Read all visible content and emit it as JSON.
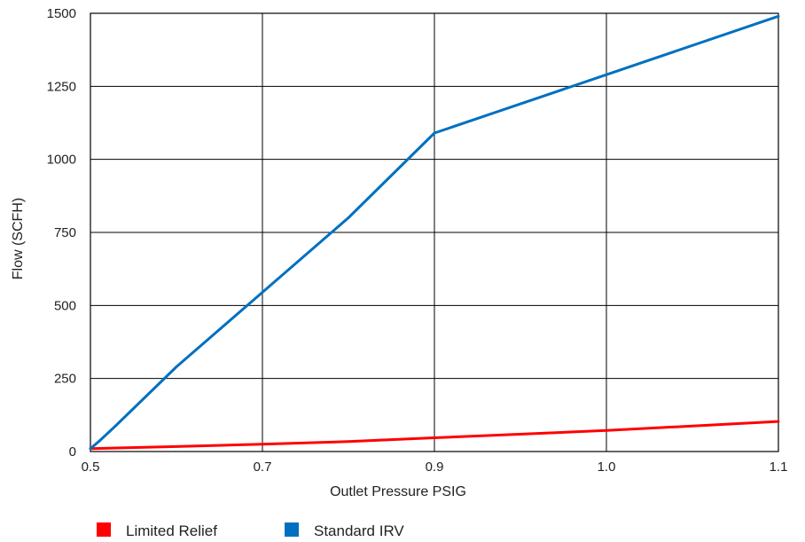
{
  "chart_data": {
    "type": "line",
    "xlabel": "Outlet Pressure PSIG",
    "ylabel": "Flow (SCFH)",
    "x_ticks": [
      "0.5",
      "0.7",
      "0.9",
      "1.0",
      "1.1"
    ],
    "y_ticks": [
      0,
      250,
      500,
      750,
      1000,
      1250,
      1500
    ],
    "y_tick_labels": [
      "0",
      "250",
      "500",
      "750",
      "1000",
      "1250",
      "1500"
    ],
    "ylim": [
      0,
      1500
    ],
    "grid": true,
    "legend_position": "bottom-left",
    "series": [
      {
        "name": "Limited Relief",
        "color": "#ff0000",
        "points": [
          {
            "x": 0.5,
            "y": 10
          },
          {
            "x": 0.6,
            "y": 17
          },
          {
            "x": 0.7,
            "y": 25
          },
          {
            "x": 0.8,
            "y": 34
          },
          {
            "x": 0.9,
            "y": 47
          },
          {
            "x": 1.0,
            "y": 72
          },
          {
            "x": 1.1,
            "y": 103
          }
        ]
      },
      {
        "name": "Standard IRV",
        "color": "#0070c0",
        "points": [
          {
            "x": 0.5,
            "y": 10
          },
          {
            "x": 0.51,
            "y": 35
          },
          {
            "x": 0.53,
            "y": 90
          },
          {
            "x": 0.6,
            "y": 290
          },
          {
            "x": 0.7,
            "y": 545
          },
          {
            "x": 0.8,
            "y": 800
          },
          {
            "x": 0.9,
            "y": 1090
          },
          {
            "x": 1.0,
            "y": 1290
          },
          {
            "x": 1.1,
            "y": 1490
          }
        ]
      }
    ]
  }
}
